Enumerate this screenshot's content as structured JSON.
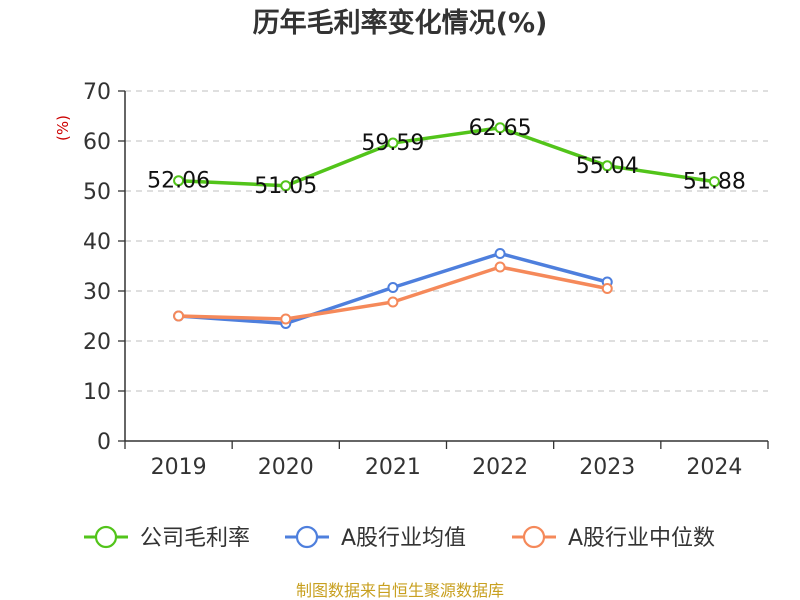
{
  "chart_data": {
    "type": "line",
    "title": "历年毛利率变化情况(%)",
    "ylabel": "(%)",
    "categories": [
      "2019",
      "2020",
      "2021",
      "2022",
      "2023",
      "2024"
    ],
    "ylim": [
      0,
      70
    ],
    "yticks": [
      "0",
      "10",
      "20",
      "30",
      "40",
      "50",
      "60",
      "70"
    ],
    "grid": true,
    "legend_position": "bottom",
    "series": [
      {
        "name": "公司毛利率",
        "color": "#52c41a",
        "values": [
          52.06,
          51.05,
          59.59,
          62.65,
          55.04,
          51.88
        ],
        "labels": [
          "52.06",
          "51.05",
          "59.59",
          "62.65",
          "55.04",
          "51.88"
        ]
      },
      {
        "name": "A股行业均值",
        "color": "#4e7fdd",
        "values": [
          25.0,
          23.5,
          30.7,
          37.5,
          31.8,
          null
        ]
      },
      {
        "name": "A股行业中位数",
        "color": "#f5895a",
        "values": [
          25.0,
          24.4,
          27.8,
          34.8,
          30.5,
          null
        ]
      }
    ],
    "ylabel_color": "#cc0000"
  },
  "source": {
    "text": "制图数据来自恒生聚源数据库",
    "color": "#c8a020"
  }
}
